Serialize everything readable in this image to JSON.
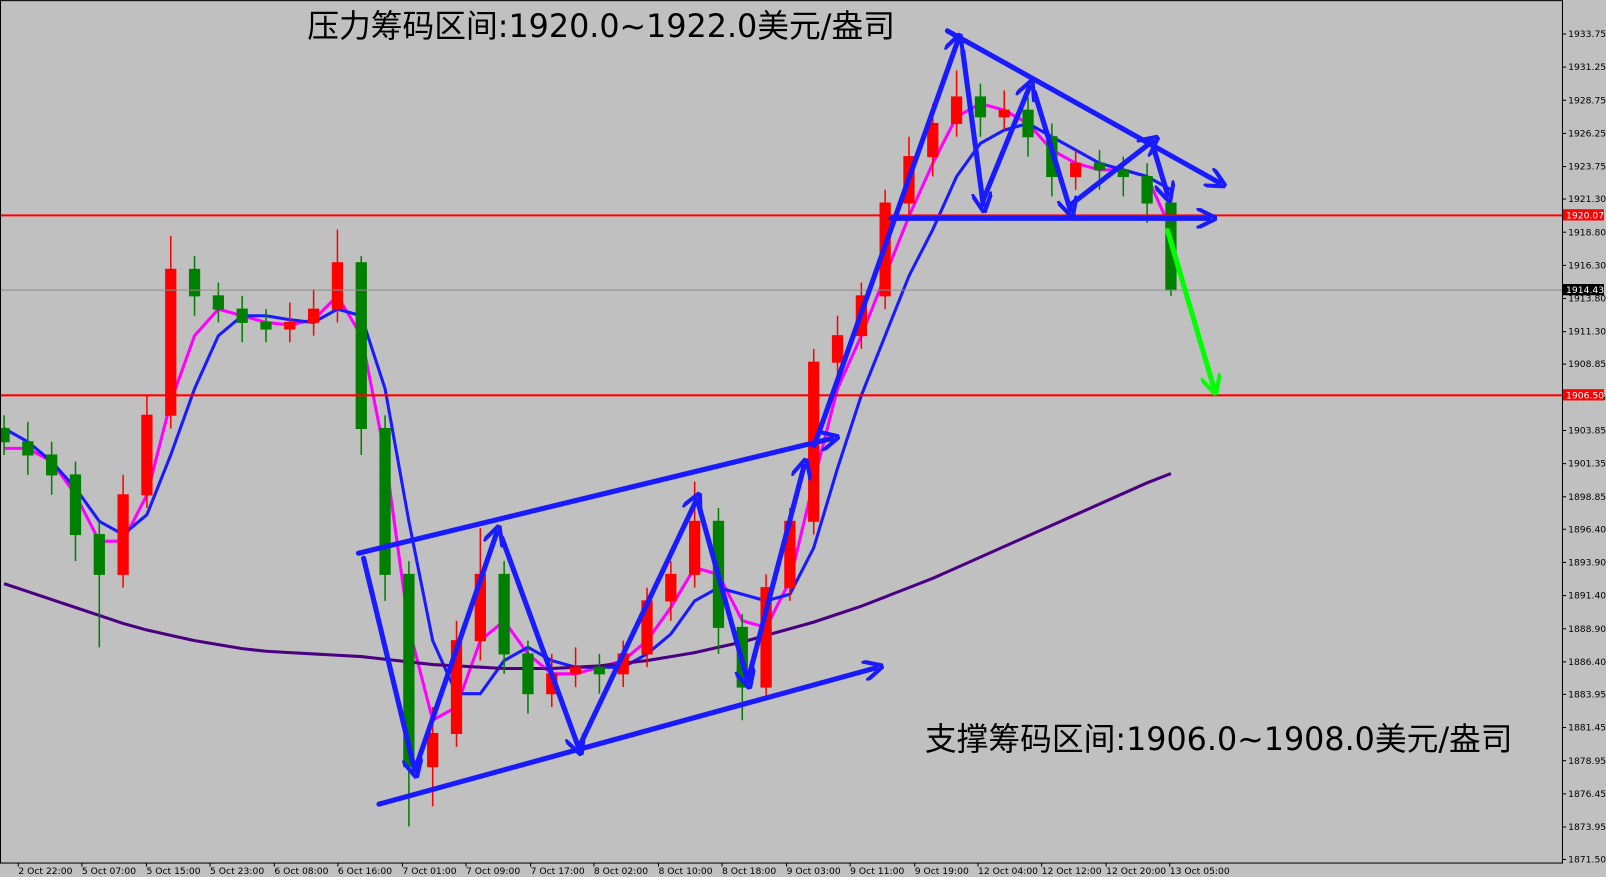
{
  "chart_data": {
    "type": "candlestick",
    "annotations": [
      "压力筹码区间:1920.0~1922.0美元/盎司",
      "支撑筹码区间:1906.0~1908.0美元/盎司"
    ],
    "open": [
      1904,
      1903,
      1902,
      1900.5,
      1896,
      1893,
      1899,
      1905,
      1916,
      1914,
      1913,
      1912,
      1911.5,
      1912,
      1913,
      1916.5,
      1904,
      1893,
      1878.5,
      1881,
      1888,
      1893,
      1887,
      1884,
      1885.5,
      1886,
      1885.5,
      1887,
      1891,
      1893,
      1897,
      1889,
      1884.5,
      1892,
      1897,
      1909,
      1911,
      1914,
      1921,
      1924.5,
      1927,
      1929,
      1927.5,
      1928,
      1926,
      1923,
      1924,
      1923.5,
      1923,
      1921
    ],
    "high": [
      1905,
      1904.5,
      1903,
      1901.5,
      1897,
      1900.5,
      1906.5,
      1918.5,
      1917,
      1915,
      1914,
      1913,
      1913.5,
      1914.5,
      1919,
      1917,
      1905,
      1894,
      1883,
      1889.5,
      1896.5,
      1894,
      1888,
      1887,
      1887.5,
      1887,
      1888,
      1892,
      1894,
      1900,
      1898,
      1890,
      1893,
      1898,
      1910,
      1912.5,
      1915,
      1922,
      1926,
      1928.5,
      1931,
      1930,
      1929.5,
      1929,
      1927,
      1925,
      1925,
      1924.5,
      1924,
      1921.5
    ],
    "low": [
      1902,
      1900.5,
      1899,
      1894,
      1887.5,
      1892,
      1898,
      1904,
      1912.5,
      1912,
      1910.5,
      1910.5,
      1910.5,
      1911,
      1912,
      1902,
      1891,
      1874,
      1875.5,
      1880,
      1886.5,
      1885.5,
      1882.5,
      1883,
      1884.5,
      1884,
      1884.5,
      1886,
      1889.5,
      1892,
      1887,
      1882,
      1883.5,
      1891,
      1896,
      1907.5,
      1910,
      1913,
      1920,
      1923,
      1926,
      1926,
      1926.5,
      1924.5,
      1921.5,
      1922,
      1922,
      1921.5,
      1919.5,
      1914
    ],
    "close": [
      1903,
      1902,
      1900.5,
      1896,
      1893,
      1899,
      1905,
      1916,
      1914,
      1913,
      1912,
      1911.5,
      1912,
      1913,
      1916.5,
      1904,
      1893,
      1878.5,
      1881,
      1888,
      1893,
      1887,
      1884,
      1885.5,
      1886,
      1885.5,
      1887,
      1891,
      1893,
      1897,
      1889,
      1884.5,
      1892,
      1897,
      1909,
      1911,
      1914,
      1921,
      1924.5,
      1927,
      1929,
      1927.5,
      1928,
      1926,
      1923,
      1924,
      1923.5,
      1923,
      1921,
      1914.43
    ],
    "up_color": "#ff0000",
    "down_color": "#008000",
    "series": [
      {
        "color": "#ff00ff",
        "values": [
          1902.5,
          1902.5,
          1901.5,
          1899,
          1895.5,
          1895.5,
          1899,
          1906,
          1911,
          1913,
          1912.5,
          1912,
          1911.8,
          1912.2,
          1914,
          1911,
          1902,
          1889,
          1882,
          1883,
          1888,
          1889.5,
          1887,
          1885.5,
          1885.5,
          1886,
          1886.5,
          1888,
          1890.5,
          1893.5,
          1893,
          1889.5,
          1889,
          1892.5,
          1900,
          1907,
          1911,
          1915.5,
          1920,
          1924,
          1927.5,
          1928.5,
          1928,
          1927,
          1925,
          1924,
          1923.5,
          1923.5,
          1923,
          1919
        ]
      },
      {
        "color": "#1a1aff",
        "values": [
          1904,
          1903,
          1901.5,
          1899.5,
          1897,
          1896,
          1897.5,
          1902,
          1907,
          1911,
          1912.5,
          1912.5,
          1912.2,
          1912,
          1913,
          1912.5,
          1907,
          1897,
          1888,
          1884,
          1884,
          1886.5,
          1887.5,
          1886.5,
          1886,
          1886,
          1886,
          1887,
          1888.5,
          1891,
          1892,
          1891.5,
          1891,
          1891.5,
          1895,
          1901,
          1906.5,
          1911,
          1915.5,
          1919,
          1923,
          1925.5,
          1926.5,
          1927,
          1926,
          1925,
          1924,
          1923.5,
          1923,
          1922
        ]
      },
      {
        "color": "#4b0082",
        "values": [
          1892.3,
          1891.7,
          1891.1,
          1890.5,
          1889.9,
          1889.3,
          1888.8,
          1888.4,
          1888,
          1887.7,
          1887.4,
          1887.2,
          1887.1,
          1887,
          1886.9,
          1886.8,
          1886.6,
          1886.4,
          1886.2,
          1886.1,
          1886,
          1885.9,
          1885.9,
          1885.9,
          1886,
          1886.1,
          1886.3,
          1886.5,
          1886.8,
          1887.1,
          1887.5,
          1887.9,
          1888.4,
          1888.9,
          1889.4,
          1890,
          1890.6,
          1891.3,
          1892,
          1892.7,
          1893.5,
          1894.3,
          1895.1,
          1895.9,
          1896.7,
          1897.5,
          1898.3,
          1899.1,
          1899.9,
          1900.6
        ]
      }
    ],
    "levels": [
      {
        "value": 1920.07,
        "color": "#ff0000"
      },
      {
        "value": 1906.5,
        "label": "1906.50",
        "color": "#ff0000"
      },
      {
        "value": 1914.43,
        "color": "#8c8c8c"
      }
    ],
    "ylim": [
      1871.27,
      1936.3
    ],
    "yticks": [
      1933.75,
      1931.25,
      1928.75,
      1926.25,
      1923.75,
      {
        "value": 1921.3,
        "label": "1921.30"
      },
      {
        "value": 1918.8,
        "label": "1918.80"
      },
      {
        "value": 1916.3,
        "label": "1916.30"
      },
      {
        "value": 1913.8,
        "label": "1913.80"
      },
      {
        "value": 1911.3,
        "label": "1911.30"
      },
      1908.85,
      1906.35,
      1903.85,
      1901.35,
      1898.85,
      {
        "value": 1896.4,
        "label": "1896.40"
      },
      {
        "value": 1893.9,
        "label": "1893.90"
      },
      {
        "value": 1891.4,
        "label": "1891.40"
      },
      {
        "value": 1888.9,
        "label": "1888.90"
      },
      {
        "value": 1886.4,
        "label": "1886.40"
      },
      1883.95,
      1881.45,
      1878.95,
      1876.45,
      1873.95,
      {
        "value": 1871.5,
        "label": "1871.50"
      }
    ],
    "xlim": [
      -0.17,
      65.42
    ],
    "xticks": [
      {
        "value": 0.6,
        "label": "2 Oct 22:00"
      },
      {
        "value": 3.27,
        "label": "5 Oct 07:00"
      },
      {
        "value": 5.98,
        "label": "5 Oct 15:00"
      },
      {
        "value": 8.65,
        "label": "5 Oct 23:00"
      },
      {
        "value": 11.35,
        "label": "6 Oct 08:00"
      },
      {
        "value": 14.02,
        "label": "6 Oct 16:00"
      },
      {
        "value": 16.73,
        "label": "7 Oct 01:00"
      },
      {
        "value": 19.4,
        "label": "7 Oct 09:00"
      },
      {
        "value": 22.11,
        "label": "7 Oct 17:00"
      },
      {
        "value": 24.77,
        "label": "8 Oct 02:00"
      },
      {
        "value": 27.48,
        "label": "8 Oct 10:00"
      },
      {
        "value": 30.15,
        "label": "8 Oct 18:00"
      },
      {
        "value": 32.86,
        "label": "9 Oct 03:00"
      },
      {
        "value": 35.53,
        "label": "9 Oct 11:00"
      },
      {
        "value": 38.24,
        "label": "9 Oct 19:00"
      },
      {
        "value": 40.9,
        "label": "12 Oct 04:00"
      },
      {
        "value": 43.57,
        "label": "12 Oct 12:00"
      },
      {
        "value": 46.28,
        "label": "12 Oct 20:00"
      },
      {
        "value": 48.95,
        "label": "13 Oct 05:00"
      }
    ]
  }
}
